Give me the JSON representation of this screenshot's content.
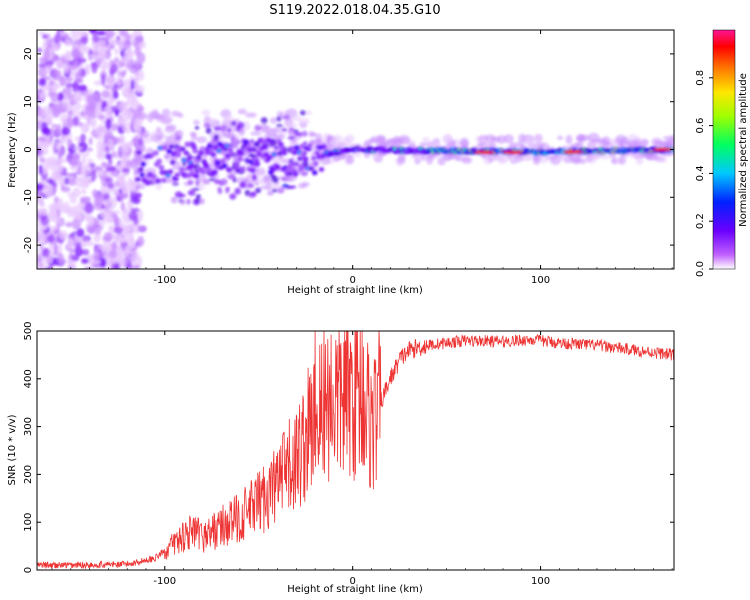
{
  "title": "S119.2022.018.04.35.G10",
  "chart_data": [
    {
      "type": "heatmap",
      "xlabel": "Height of straight line (km)",
      "ylabel": "Frequency (Hz)",
      "xlim": [
        -168,
        171
      ],
      "ylim": [
        -25,
        25
      ],
      "xticks": [
        -100,
        0,
        100
      ],
      "yticks": [
        -20,
        -10,
        0,
        10,
        20
      ],
      "colorbar": {
        "label": "Normalized spectral amplitude",
        "range": [
          0,
          1
        ],
        "ticks": [
          0.0,
          0.2,
          0.4,
          0.6,
          0.8
        ]
      },
      "ridge": [
        {
          "x": -115,
          "y": -4
        },
        {
          "x": -100,
          "y": -3
        },
        {
          "x": -80,
          "y": -2
        },
        {
          "x": -60,
          "y": -1
        },
        {
          "x": -40,
          "y": -1.5
        },
        {
          "x": -25,
          "y": -2
        },
        {
          "x": -15,
          "y": -1
        },
        {
          "x": 0,
          "y": 0
        },
        {
          "x": 50,
          "y": -0.3
        },
        {
          "x": 100,
          "y": -0.5
        },
        {
          "x": 171,
          "y": 0
        }
      ],
      "grid": false
    },
    {
      "type": "line",
      "xlabel": "Height of straight line (km)",
      "ylabel": "SNR (10 * v/v)",
      "xlim": [
        -168,
        171
      ],
      "ylim": [
        0,
        500
      ],
      "xticks": [
        -100,
        0,
        100
      ],
      "yticks": [
        0,
        100,
        200,
        300,
        400,
        500
      ],
      "color": "#ee3333",
      "series": [
        {
          "x": [
            -168,
            -150,
            -120,
            -105,
            -95,
            -88,
            -80,
            -70,
            -60,
            -50,
            -40,
            -30,
            -22,
            -18,
            -12,
            -5,
            0,
            5,
            10,
            15,
            20,
            25,
            30,
            40,
            50,
            60,
            80,
            95,
            110,
            130,
            150,
            171
          ],
          "y": [
            10,
            10,
            12,
            25,
            55,
            80,
            70,
            90,
            110,
            140,
            180,
            230,
            300,
            330,
            360,
            360,
            370,
            380,
            300,
            350,
            400,
            440,
            460,
            470,
            475,
            480,
            478,
            482,
            475,
            470,
            460,
            450
          ]
        }
      ],
      "grid": false
    }
  ]
}
